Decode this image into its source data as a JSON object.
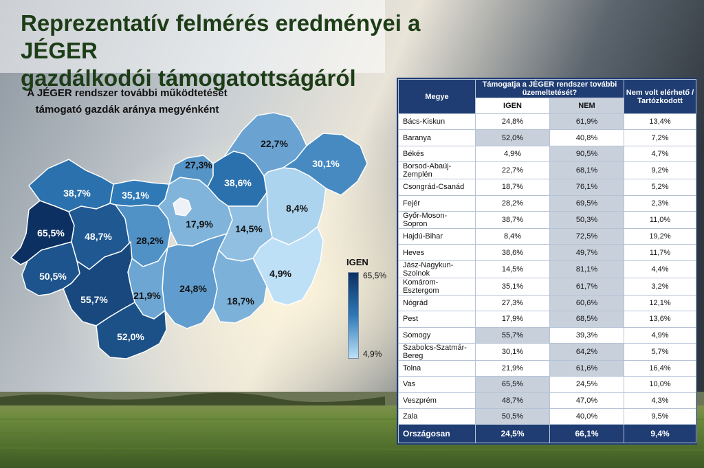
{
  "title_line1": "Reprezentatív felmérés eredményei a JÉGER",
  "title_line2": "gazdálkodói támogatottságáról",
  "map_title_line1": "A JÉGER rendszer további működtetését",
  "map_title_line2": "támogató gazdák aránya megyénként",
  "legend": {
    "title": "IGEN",
    "max_label": "65,5%",
    "min_label": "4,9%",
    "max_value": 65.5,
    "min_value": 4.9
  },
  "table": {
    "header_county": "Megye",
    "header_question": "Támogatja a JÉGER rendszer további üzemeltetését?",
    "header_yes": "IGEN",
    "header_no": "NEM",
    "header_na": "Nem volt elérhető / Tartózkodott",
    "total_label": "Országosan",
    "total": {
      "yes": "24,5%",
      "no": "66,1%",
      "na": "9,4%"
    },
    "rows": [
      {
        "county": "Bács-Kiskun",
        "yes": "24,8%",
        "no": "61,9%",
        "na": "13,4%"
      },
      {
        "county": "Baranya",
        "yes": "52,0%",
        "no": "40,8%",
        "na": "7,2%"
      },
      {
        "county": "Békés",
        "yes": "4,9%",
        "no": "90,5%",
        "na": "4,7%"
      },
      {
        "county": "Borsod-Abaúj-Zemplén",
        "yes": "22,7%",
        "no": "68,1%",
        "na": "9,2%"
      },
      {
        "county": "Csongrád-Csanád",
        "yes": "18,7%",
        "no": "76,1%",
        "na": "5,2%"
      },
      {
        "county": "Fejér",
        "yes": "28,2%",
        "no": "69,5%",
        "na": "2,3%"
      },
      {
        "county": "Győr-Moson-Sopron",
        "yes": "38,7%",
        "no": "50,3%",
        "na": "11,0%"
      },
      {
        "county": "Hajdú-Bihar",
        "yes": "8,4%",
        "no": "72,5%",
        "na": "19,2%"
      },
      {
        "county": "Heves",
        "yes": "38,6%",
        "no": "49,7%",
        "na": "11,7%"
      },
      {
        "county": "Jász-Nagykun-Szolnok",
        "yes": "14,5%",
        "no": "81,1%",
        "na": "4,4%"
      },
      {
        "county": "Komárom-Esztergom",
        "yes": "35,1%",
        "no": "61,7%",
        "na": "3,2%"
      },
      {
        "county": "Nógrád",
        "yes": "27,3%",
        "no": "60,6%",
        "na": "12,1%"
      },
      {
        "county": "Pest",
        "yes": "17,9%",
        "no": "68,5%",
        "na": "13,6%"
      },
      {
        "county": "Somogy",
        "yes": "55,7%",
        "no": "39,3%",
        "na": "4,9%"
      },
      {
        "county": "Szabolcs-Szatmár-Bereg",
        "yes": "30,1%",
        "no": "64,2%",
        "na": "5,7%"
      },
      {
        "county": "Tolna",
        "yes": "21,9%",
        "no": "61,6%",
        "na": "16,4%"
      },
      {
        "county": "Vas",
        "yes": "65,5%",
        "no": "24,5%",
        "na": "10,0%"
      },
      {
        "county": "Veszprém",
        "yes": "48,7%",
        "no": "47,0%",
        "na": "4,3%"
      },
      {
        "county": "Zala",
        "yes": "50,5%",
        "no": "40,0%",
        "na": "9,5%"
      }
    ]
  },
  "chart_data": {
    "type": "table",
    "title": "Reprezentatív felmérés eredményei a JÉGER gazdálkodói támogatottságáról",
    "columns": [
      "Megye",
      "IGEN",
      "NEM",
      "Nem volt elérhető / Tartózkodott"
    ],
    "map_series": {
      "name": "IGEN",
      "unit": "%",
      "colorscale": [
        "#bde0f6",
        "#0d3063"
      ],
      "values": {
        "Győr-Moson-Sopron": 38.7,
        "Komárom-Esztergom": 35.1,
        "Vas": 65.5,
        "Veszprém": 48.7,
        "Zala": 50.5,
        "Fejér": 28.2,
        "Pest": 17.9,
        "Nógrád": 27.3,
        "Heves": 38.6,
        "Borsod-Abaúj-Zemplén": 22.7,
        "Szabolcs-Szatmár-Bereg": 30.1,
        "Hajdú-Bihar": 8.4,
        "Jász-Nagykun-Szolnok": 14.5,
        "Békés": 4.9,
        "Csongrád-Csanád": 18.7,
        "Bács-Kiskun": 24.8,
        "Tolna": 21.9,
        "Somogy": 55.7,
        "Baranya": 52.0
      }
    }
  }
}
